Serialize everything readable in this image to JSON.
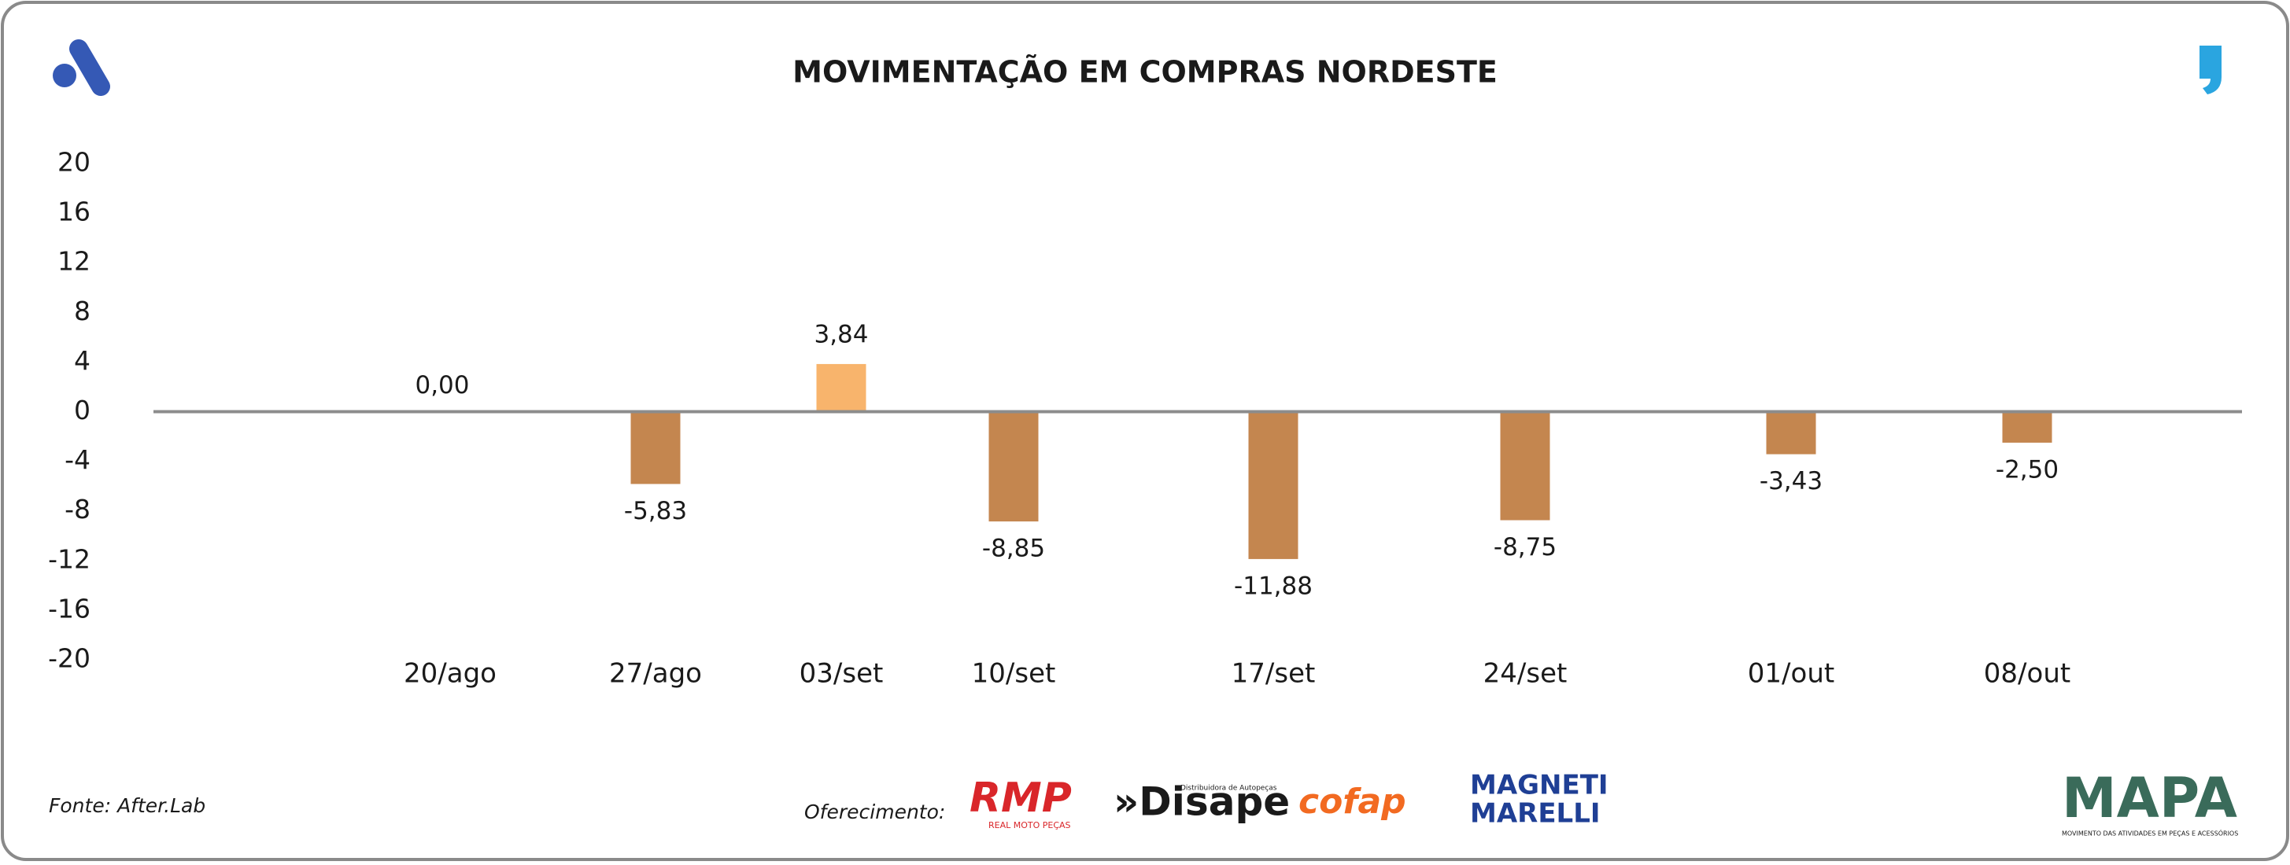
{
  "chart_data": {
    "type": "bar",
    "title": "MOVIMENTAÇÃO EM COMPRAS NORDESTE",
    "categories": [
      "20/ago",
      "27/ago",
      "03/set",
      "10/set",
      "17/set",
      "24/set",
      "01/out",
      "08/out"
    ],
    "values": [
      0.0,
      -5.83,
      3.84,
      -8.85,
      -11.88,
      -8.75,
      -3.43,
      -2.5
    ],
    "value_labels": [
      "0,00",
      "-5,83",
      "3,84",
      "-8,85",
      "-11,88",
      "-8,75",
      "-3,43",
      "-2,50"
    ],
    "colors": [
      "#c4864f",
      "#c4864f",
      "#f8b46c",
      "#c4864f",
      "#c4864f",
      "#c4864f",
      "#c4864f",
      "#c4864f"
    ],
    "ylim": [
      -20,
      20
    ],
    "yticks": [
      20,
      16,
      12,
      8,
      4,
      0,
      -4,
      -8,
      -12,
      -16,
      -20
    ],
    "grid": false
  },
  "footer": {
    "source": "Fonte: After.Lab",
    "sponsor_label": "Oferecimento:",
    "sponsors": [
      "RMP",
      "REAL MOTO PEÇAS",
      "»Disape",
      "Distribuidora de Autopeças",
      "cofap",
      "MAGNETI",
      "MARELLI"
    ],
    "brand": "MAPA",
    "brand_tagline": "MOVIMENTO DAS ATIVIDADES EM PEÇAS E ACESSÓRIOS"
  }
}
